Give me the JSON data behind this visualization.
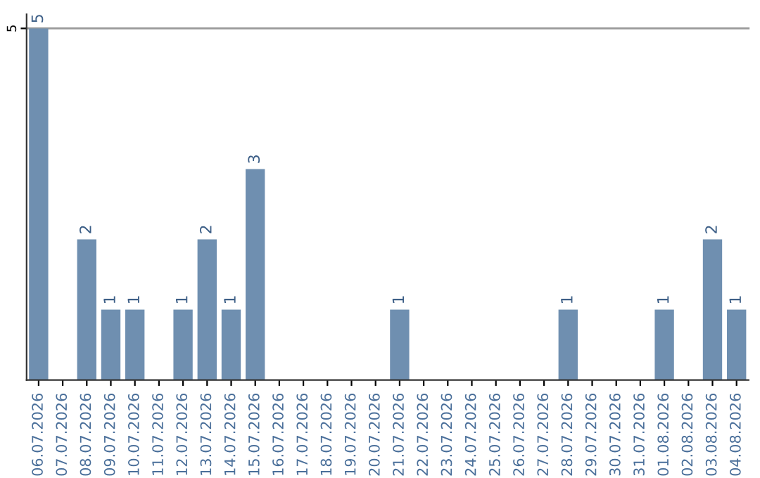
{
  "chart_data": {
    "type": "bar",
    "categories": [
      "06.07.2026",
      "07.07.2026",
      "08.07.2026",
      "09.07.2026",
      "10.07.2026",
      "11.07.2026",
      "12.07.2026",
      "13.07.2026",
      "14.07.2026",
      "15.07.2026",
      "16.07.2026",
      "17.07.2026",
      "18.07.2026",
      "19.07.2026",
      "20.07.2026",
      "21.07.2026",
      "22.07.2026",
      "23.07.2026",
      "24.07.2026",
      "25.07.2026",
      "26.07.2026",
      "27.07.2026",
      "28.07.2026",
      "29.07.2026",
      "30.07.2026",
      "31.07.2026",
      "01.08.2026",
      "02.08.2026",
      "03.08.2026",
      "04.08.2026"
    ],
    "values": [
      5,
      0,
      2,
      1,
      1,
      0,
      1,
      2,
      1,
      3,
      0,
      0,
      0,
      0,
      0,
      1,
      0,
      0,
      0,
      0,
      0,
      0,
      1,
      0,
      0,
      0,
      1,
      0,
      2,
      1
    ],
    "value_labels": [
      "5",
      null,
      "2",
      "1",
      "1",
      null,
      "1",
      "2",
      "1",
      "3",
      null,
      null,
      null,
      null,
      null,
      "1",
      null,
      null,
      null,
      null,
      null,
      null,
      "1",
      null,
      null,
      null,
      "1",
      null,
      "2",
      "1"
    ],
    "color": "#6f8fb0",
    "ylim": [
      0,
      5.2
    ],
    "yticks": [
      5
    ],
    "grid": "y"
  }
}
